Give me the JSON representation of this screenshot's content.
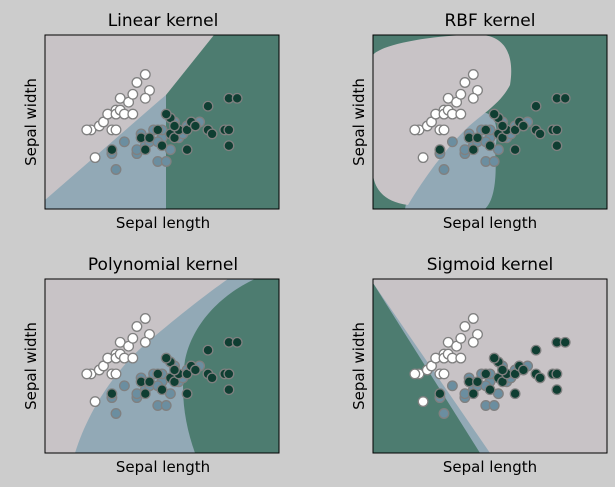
{
  "colors": {
    "background": "#cccccc",
    "region_class0": "#c8c3c6",
    "region_class1": "#92a9b6",
    "region_class2": "#4d7c70",
    "point_class0": "#ffffff",
    "point_class1": "#6b8ea0",
    "point_class2": "#0f3e32",
    "point_edge": "#808080"
  },
  "points": [
    {
      "x": 4.4,
      "y": 3.0,
      "c": 0
    },
    {
      "x": 4.5,
      "y": 2.3,
      "c": 0
    },
    {
      "x": 4.6,
      "y": 3.1,
      "c": 0
    },
    {
      "x": 4.7,
      "y": 3.2,
      "c": 0
    },
    {
      "x": 4.8,
      "y": 3.4,
      "c": 0
    },
    {
      "x": 4.9,
      "y": 3.0,
      "c": 0
    },
    {
      "x": 5.0,
      "y": 3.5,
      "c": 0
    },
    {
      "x": 5.0,
      "y": 3.4,
      "c": 0
    },
    {
      "x": 5.1,
      "y": 3.5,
      "c": 0
    },
    {
      "x": 5.1,
      "y": 3.8,
      "c": 0
    },
    {
      "x": 5.2,
      "y": 3.4,
      "c": 0
    },
    {
      "x": 5.3,
      "y": 3.7,
      "c": 0
    },
    {
      "x": 5.4,
      "y": 3.9,
      "c": 0
    },
    {
      "x": 5.4,
      "y": 3.4,
      "c": 0
    },
    {
      "x": 5.5,
      "y": 4.2,
      "c": 0
    },
    {
      "x": 5.7,
      "y": 4.4,
      "c": 0
    },
    {
      "x": 5.8,
      "y": 4.0,
      "c": 0
    },
    {
      "x": 5.7,
      "y": 3.8,
      "c": 0
    },
    {
      "x": 4.3,
      "y": 3.0,
      "c": 0
    },
    {
      "x": 5.0,
      "y": 3.0,
      "c": 0
    },
    {
      "x": 4.9,
      "y": 2.4,
      "c": 1
    },
    {
      "x": 5.0,
      "y": 2.0,
      "c": 1
    },
    {
      "x": 5.2,
      "y": 2.7,
      "c": 1
    },
    {
      "x": 5.5,
      "y": 2.4,
      "c": 1
    },
    {
      "x": 5.6,
      "y": 2.9,
      "c": 1
    },
    {
      "x": 5.7,
      "y": 2.6,
      "c": 1
    },
    {
      "x": 5.8,
      "y": 2.7,
      "c": 1
    },
    {
      "x": 6.0,
      "y": 2.2,
      "c": 1
    },
    {
      "x": 6.1,
      "y": 2.8,
      "c": 1
    },
    {
      "x": 6.2,
      "y": 2.2,
      "c": 1
    },
    {
      "x": 6.3,
      "y": 2.5,
      "c": 1
    },
    {
      "x": 6.5,
      "y": 2.8,
      "c": 1
    },
    {
      "x": 6.7,
      "y": 3.1,
      "c": 1
    },
    {
      "x": 6.6,
      "y": 2.9,
      "c": 1
    },
    {
      "x": 7.0,
      "y": 3.2,
      "c": 1
    },
    {
      "x": 5.9,
      "y": 3.0,
      "c": 1
    },
    {
      "x": 6.0,
      "y": 2.7,
      "c": 1
    },
    {
      "x": 5.5,
      "y": 2.5,
      "c": 1
    },
    {
      "x": 6.4,
      "y": 3.2,
      "c": 1
    },
    {
      "x": 6.1,
      "y": 3.0,
      "c": 1
    },
    {
      "x": 4.9,
      "y": 2.5,
      "c": 2
    },
    {
      "x": 5.6,
      "y": 2.8,
      "c": 2
    },
    {
      "x": 5.8,
      "y": 2.8,
      "c": 2
    },
    {
      "x": 6.0,
      "y": 3.0,
      "c": 2
    },
    {
      "x": 6.1,
      "y": 2.6,
      "c": 2
    },
    {
      "x": 6.3,
      "y": 3.3,
      "c": 2
    },
    {
      "x": 6.3,
      "y": 2.9,
      "c": 2
    },
    {
      "x": 6.4,
      "y": 2.8,
      "c": 2
    },
    {
      "x": 6.5,
      "y": 3.0,
      "c": 2
    },
    {
      "x": 6.7,
      "y": 2.5,
      "c": 2
    },
    {
      "x": 6.7,
      "y": 3.0,
      "c": 2
    },
    {
      "x": 6.8,
      "y": 3.2,
      "c": 2
    },
    {
      "x": 6.9,
      "y": 3.1,
      "c": 2
    },
    {
      "x": 7.2,
      "y": 3.0,
      "c": 2
    },
    {
      "x": 7.2,
      "y": 3.6,
      "c": 2
    },
    {
      "x": 7.3,
      "y": 2.9,
      "c": 2
    },
    {
      "x": 7.6,
      "y": 3.0,
      "c": 2
    },
    {
      "x": 7.7,
      "y": 2.6,
      "c": 2
    },
    {
      "x": 7.7,
      "y": 3.8,
      "c": 2
    },
    {
      "x": 7.9,
      "y": 3.8,
      "c": 2
    },
    {
      "x": 6.2,
      "y": 3.4,
      "c": 2
    },
    {
      "x": 5.7,
      "y": 2.5,
      "c": 2
    },
    {
      "x": 6.4,
      "y": 3.1,
      "c": 2
    },
    {
      "x": 7.7,
      "y": 3.0,
      "c": 2
    }
  ],
  "chart_data": [
    {
      "type": "scatter",
      "title": "Linear kernel",
      "xlabel": "Sepal length",
      "ylabel": "Sepal width",
      "xlim": [
        3.3,
        8.9
      ],
      "ylim": [
        1.0,
        5.4
      ],
      "grid": false,
      "legend": "none"
    },
    {
      "type": "scatter",
      "title": "RBF kernel",
      "xlabel": "Sepal length",
      "ylabel": "Sepal width",
      "xlim": [
        3.3,
        8.9
      ],
      "ylim": [
        1.0,
        5.4
      ],
      "grid": false,
      "legend": "none"
    },
    {
      "type": "scatter",
      "title": "Polynomial kernel",
      "xlabel": "Sepal length",
      "ylabel": "Sepal width",
      "xlim": [
        3.3,
        8.9
      ],
      "ylim": [
        1.0,
        5.4
      ],
      "grid": false,
      "legend": "none"
    },
    {
      "type": "scatter",
      "title": "Sigmoid kernel",
      "xlabel": "Sepal length",
      "ylabel": "Sepal width",
      "xlim": [
        3.3,
        8.9
      ],
      "ylim": [
        1.0,
        5.4
      ],
      "grid": false,
      "legend": "none"
    }
  ]
}
